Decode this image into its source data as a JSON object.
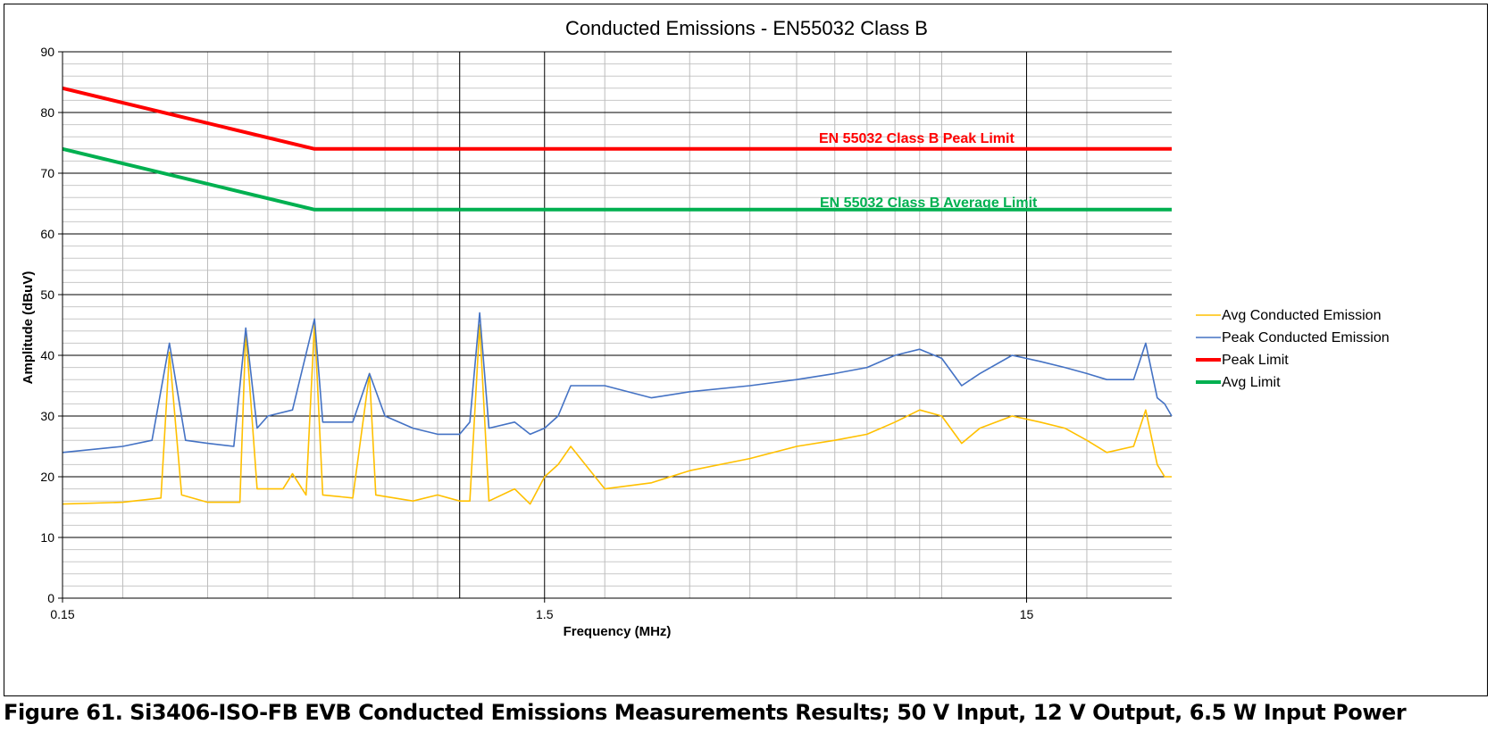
{
  "caption": "Figure 61. Si3406-ISO-FB EVB Conducted Emissions Measurements Results; 50 V Input, 12 V Output, 6.5 W Input Power",
  "colors": {
    "avg": "#FFC000",
    "peak": "#4472C4",
    "peak_limit": "#FF0000",
    "avg_limit": "#00B050"
  },
  "chart_data": {
    "type": "line",
    "title": "Conducted Emissions - EN55032 Class B",
    "xlabel": "Frequency (MHz)",
    "ylabel": "Amplitude (dBuV)",
    "x_scale": "log",
    "xlim": [
      0.15,
      30
    ],
    "ylim": [
      0,
      90
    ],
    "x_ticks": [
      "0.15",
      "1.5",
      "15"
    ],
    "y_ticks": [
      "0",
      "10",
      "20",
      "30",
      "40",
      "50",
      "60",
      "70",
      "80",
      "90"
    ],
    "grid": true,
    "legend_position": "right",
    "annotations": [
      "EN 55032 Class B Peak Limit",
      "EN 55032 Class B Average Limit"
    ],
    "series": [
      {
        "name": "Avg Conducted Emission",
        "points": [
          [
            0.15,
            15.5
          ],
          [
            0.2,
            15.8
          ],
          [
            0.24,
            16.5
          ],
          [
            0.25,
            40.5
          ],
          [
            0.265,
            17
          ],
          [
            0.3,
            15.8
          ],
          [
            0.35,
            15.8
          ],
          [
            0.36,
            44
          ],
          [
            0.38,
            18
          ],
          [
            0.43,
            18
          ],
          [
            0.45,
            20.5
          ],
          [
            0.48,
            17
          ],
          [
            0.5,
            45.5
          ],
          [
            0.52,
            17
          ],
          [
            0.6,
            16.5
          ],
          [
            0.65,
            37
          ],
          [
            0.67,
            17
          ],
          [
            0.8,
            16
          ],
          [
            0.9,
            17
          ],
          [
            1.0,
            16
          ],
          [
            1.05,
            16
          ],
          [
            1.1,
            45
          ],
          [
            1.15,
            16
          ],
          [
            1.3,
            18
          ],
          [
            1.4,
            15.5
          ],
          [
            1.5,
            20
          ],
          [
            1.6,
            22
          ],
          [
            1.7,
            25
          ],
          [
            2.0,
            18
          ],
          [
            2.5,
            19
          ],
          [
            3.0,
            21
          ],
          [
            4.0,
            23
          ],
          [
            5.0,
            25
          ],
          [
            6.0,
            26
          ],
          [
            7.0,
            27
          ],
          [
            8.0,
            29
          ],
          [
            9.0,
            31
          ],
          [
            10.0,
            30
          ],
          [
            11.0,
            25.5
          ],
          [
            12.0,
            28
          ],
          [
            14.0,
            30
          ],
          [
            16.0,
            29
          ],
          [
            18.0,
            28
          ],
          [
            20.0,
            26
          ],
          [
            22.0,
            24
          ],
          [
            25.0,
            25
          ],
          [
            26.5,
            31
          ],
          [
            28.0,
            22
          ],
          [
            29.0,
            20
          ],
          [
            30.0,
            20
          ]
        ]
      },
      {
        "name": "Peak Conducted Emission",
        "points": [
          [
            0.15,
            24
          ],
          [
            0.2,
            25
          ],
          [
            0.23,
            26
          ],
          [
            0.25,
            42
          ],
          [
            0.27,
            26
          ],
          [
            0.3,
            25.5
          ],
          [
            0.34,
            25
          ],
          [
            0.36,
            44.5
          ],
          [
            0.38,
            28
          ],
          [
            0.4,
            30
          ],
          [
            0.45,
            31
          ],
          [
            0.5,
            46
          ],
          [
            0.52,
            29
          ],
          [
            0.6,
            29
          ],
          [
            0.65,
            37
          ],
          [
            0.7,
            30
          ],
          [
            0.8,
            28
          ],
          [
            0.9,
            27
          ],
          [
            1.0,
            27
          ],
          [
            1.05,
            29
          ],
          [
            1.1,
            47
          ],
          [
            1.15,
            28
          ],
          [
            1.3,
            29
          ],
          [
            1.4,
            27
          ],
          [
            1.5,
            28
          ],
          [
            1.6,
            30
          ],
          [
            1.7,
            35
          ],
          [
            2.0,
            35
          ],
          [
            2.5,
            33
          ],
          [
            3.0,
            34
          ],
          [
            4.0,
            35
          ],
          [
            5.0,
            36
          ],
          [
            6.0,
            37
          ],
          [
            7.0,
            38
          ],
          [
            8.0,
            40
          ],
          [
            9.0,
            41
          ],
          [
            10.0,
            39.5
          ],
          [
            11.0,
            35
          ],
          [
            12.0,
            37
          ],
          [
            14.0,
            40
          ],
          [
            16.0,
            39
          ],
          [
            18.0,
            38
          ],
          [
            20.0,
            37
          ],
          [
            22.0,
            36
          ],
          [
            25.0,
            36
          ],
          [
            26.5,
            42
          ],
          [
            28.0,
            33
          ],
          [
            29.0,
            32
          ],
          [
            30.0,
            30
          ]
        ]
      },
      {
        "name": "Peak Limit",
        "points": [
          [
            0.15,
            84
          ],
          [
            0.5,
            74
          ],
          [
            30,
            74
          ]
        ]
      },
      {
        "name": "Avg Limit",
        "points": [
          [
            0.15,
            74
          ],
          [
            0.5,
            64
          ],
          [
            30,
            64
          ]
        ]
      }
    ]
  }
}
